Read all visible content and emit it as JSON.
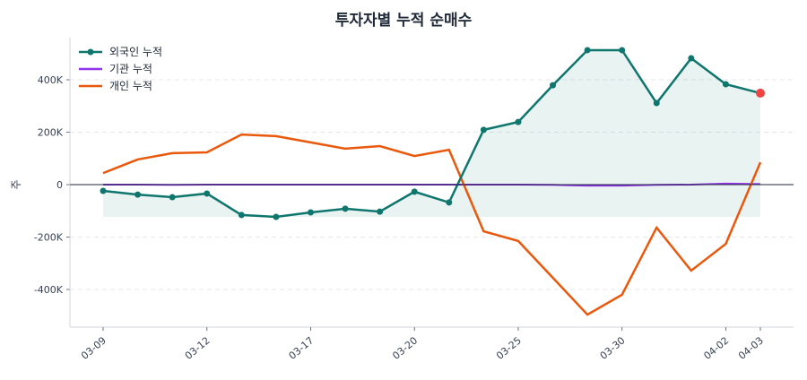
{
  "chart_data": {
    "type": "line",
    "title": "투자자별 누적 순매수",
    "ylabel": "주",
    "xlabel": "",
    "x": [
      "03-09",
      "03-10",
      "03-11",
      "03-12",
      "03-13",
      "03-16",
      "03-17",
      "03-18",
      "03-19",
      "03-20",
      "03-23",
      "03-24",
      "03-25",
      "03-26",
      "03-27",
      "03-30",
      "03-31",
      "04-01",
      "04-02",
      "04-03"
    ],
    "xtick_labels": [
      "03-09",
      "03-12",
      "03-17",
      "03-20",
      "03-25",
      "03-30",
      "04-02",
      "04-03"
    ],
    "ylim": [
      -543000,
      560000
    ],
    "yticks": [
      -400000,
      -200000,
      0,
      200000,
      400000
    ],
    "ytick_labels": [
      "-400K",
      "-200K",
      "0",
      "200K",
      "400K"
    ],
    "grid": "y-dashed",
    "legend": "top-left",
    "series": [
      {
        "name": "외국인 누적",
        "color": "#0f766e",
        "markers": true,
        "fill": true,
        "values": [
          -24000,
          -38000,
          -48000,
          -34000,
          -116000,
          -123000,
          -106000,
          -92000,
          -103000,
          -27000,
          -68000,
          209000,
          239000,
          379000,
          513000,
          513000,
          311000,
          482000,
          383000,
          349000
        ]
      },
      {
        "name": "기관 누적",
        "color": "#9333ea",
        "markers": false,
        "values": [
          0,
          0,
          -1000,
          0,
          0,
          0,
          0,
          0,
          0,
          0,
          0,
          0,
          0,
          -1000,
          -4000,
          -4000,
          -1000,
          0,
          4000,
          2000
        ]
      },
      {
        "name": "개인 누적",
        "color": "#ea580c",
        "markers": false,
        "values": [
          44000,
          96000,
          120000,
          123000,
          191000,
          185000,
          161000,
          137000,
          147000,
          109000,
          133000,
          -178000,
          -215000,
          -355000,
          -496000,
          -420000,
          -164000,
          -328000,
          -226000,
          85000
        ]
      }
    ],
    "last_point_color": "#ef4444"
  }
}
